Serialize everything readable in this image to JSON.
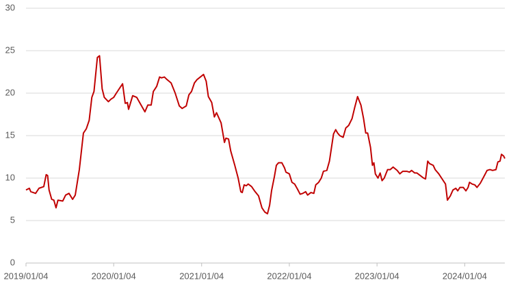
{
  "chart_data": {
    "type": "line",
    "color": "#c00000",
    "grid": true,
    "ylim": [
      0,
      30
    ],
    "yticks": [
      0,
      5,
      10,
      15,
      20,
      25,
      30
    ],
    "xlim": [
      "2019/01/04",
      "2024/06/19"
    ],
    "xticks": [
      "2019/01/04",
      "2020/01/04",
      "2021/01/04",
      "2022/01/04",
      "2023/01/04",
      "2024/01/04"
    ],
    "x": [
      "2019/01/04",
      "2019/01/18",
      "2019/01/24",
      "2019/02/13",
      "2019/02/27",
      "2019/03/19",
      "2019/03/29",
      "2019/04/04",
      "2019/04/10",
      "2019/04/21",
      "2019/04/30",
      "2019/05/09",
      "2019/05/17",
      "2019/06/06",
      "2019/06/18",
      "2019/07/02",
      "2019/07/17",
      "2019/07/28",
      "2019/08/14",
      "2019/08/31",
      "2019/09/12",
      "2019/09/24",
      "2019/10/05",
      "2019/10/14",
      "2019/10/28",
      "2019/11/06",
      "2019/11/17",
      "2019/11/26",
      "2019/12/13",
      "2019/12/24",
      "2020/01/04",
      "2020/01/15",
      "2020/01/29",
      "2020/02/10",
      "2020/02/21",
      "2020/03/01",
      "2020/03/06",
      "2020/03/23",
      "2020/04/09",
      "2020/04/29",
      "2020/05/13",
      "2020/05/25",
      "2020/06/08",
      "2020/06/17",
      "2020/07/01",
      "2020/07/13",
      "2020/07/21",
      "2020/08/02",
      "2020/08/13",
      "2020/08/30",
      "2020/09/16",
      "2020/10/03",
      "2020/10/15",
      "2020/11/01",
      "2020/11/12",
      "2020/11/23",
      "2020/12/05",
      "2020/12/16",
      "2021/01/12",
      "2021/01/23",
      "2021/02/01",
      "2021/02/15",
      "2021/02/26",
      "2021/03/07",
      "2021/03/18",
      "2021/03/26",
      "2021/04/09",
      "2021/04/15",
      "2021/04/26",
      "2021/05/05",
      "2021/05/22",
      "2021/06/05",
      "2021/06/16",
      "2021/06/22",
      "2021/06/30",
      "2021/07/09",
      "2021/07/17",
      "2021/07/31",
      "2021/08/12",
      "2021/08/29",
      "2021/09/12",
      "2021/09/24",
      "2021/10/05",
      "2021/10/14",
      "2021/10/22",
      "2021/11/03",
      "2021/11/11",
      "2021/11/20",
      "2021/12/04",
      "2021/12/15",
      "2021/12/21",
      "2022/01/04",
      "2022/01/15",
      "2022/01/26",
      "2022/02/07",
      "2022/02/18",
      "2022/03/01",
      "2022/03/13",
      "2022/03/21",
      "2022/04/04",
      "2022/04/16",
      "2022/04/24",
      "2022/05/06",
      "2022/05/17",
      "2022/05/26",
      "2022/06/09",
      "2022/06/20",
      "2022/07/07",
      "2022/07/16",
      "2022/07/24",
      "2022/08/02",
      "2022/08/16",
      "2022/08/27",
      "2022/09/08",
      "2022/09/22",
      "2022/10/03",
      "2022/10/15",
      "2022/10/29",
      "2022/11/09",
      "2022/11/18",
      "2022/11/26",
      "2022/12/08",
      "2022/12/16",
      "2022/12/22",
      "2022/12/28",
      "2023/01/08",
      "2023/01/17",
      "2023/01/25",
      "2023/02/03",
      "2023/02/17",
      "2023/02/28",
      "2023/03/12",
      "2023/03/29",
      "2023/04/09",
      "2023/04/21",
      "2023/05/08",
      "2023/05/19",
      "2023/05/28",
      "2023/06/10",
      "2023/06/19",
      "2023/07/03",
      "2023/07/17",
      "2023/07/25",
      "2023/08/03",
      "2023/08/11",
      "2023/08/26",
      "2023/09/03",
      "2023/09/18",
      "2023/10/02",
      "2023/10/16",
      "2023/10/24",
      "2023/11/05",
      "2023/11/16",
      "2023/11/28",
      "2023/12/06",
      "2023/12/15",
      "2023/12/29",
      "2024/01/09",
      "2024/01/18",
      "2024/01/24",
      "2024/02/04",
      "2024/02/15",
      "2024/02/24",
      "2024/03/09",
      "2024/03/26",
      "2024/04/06",
      "2024/04/18",
      "2024/04/29",
      "2024/05/13",
      "2024/05/21",
      "2024/05/30",
      "2024/06/05",
      "2024/06/14",
      "2024/06/19"
    ],
    "values": [
      8.6,
      8.8,
      8.4,
      8.2,
      8.8,
      9.0,
      10.4,
      10.3,
      8.6,
      7.5,
      7.4,
      6.5,
      7.4,
      7.3,
      8.0,
      8.2,
      7.5,
      8.0,
      11.0,
      15.3,
      15.8,
      16.8,
      19.5,
      20.2,
      24.2,
      24.4,
      20.5,
      19.5,
      19.0,
      19.3,
      19.5,
      20.0,
      20.6,
      21.1,
      18.8,
      18.9,
      18.1,
      19.7,
      19.5,
      18.5,
      17.8,
      18.6,
      18.6,
      20.2,
      20.8,
      21.9,
      21.8,
      21.9,
      21.6,
      21.2,
      20.0,
      18.5,
      18.2,
      18.5,
      19.8,
      20.2,
      21.2,
      21.6,
      22.2,
      21.4,
      19.6,
      18.9,
      17.2,
      17.7,
      17.0,
      16.5,
      14.2,
      14.7,
      14.6,
      13.2,
      11.5,
      10.0,
      8.4,
      8.3,
      9.2,
      9.1,
      9.3,
      9.0,
      8.5,
      7.9,
      6.5,
      6.0,
      5.8,
      6.8,
      8.5,
      10.2,
      11.5,
      11.8,
      11.8,
      11.2,
      10.7,
      10.5,
      9.5,
      9.3,
      8.7,
      8.1,
      8.2,
      8.4,
      8.0,
      8.3,
      8.2,
      9.2,
      9.5,
      10.0,
      10.8,
      10.9,
      12.0,
      15.2,
      15.7,
      15.3,
      15.0,
      14.8,
      15.9,
      16.2,
      17.0,
      18.3,
      19.6,
      18.6,
      17.0,
      15.3,
      15.3,
      13.6,
      11.5,
      11.8,
      10.5,
      10.0,
      10.6,
      9.7,
      10.0,
      11.0,
      11.0,
      11.3,
      10.9,
      10.5,
      10.8,
      10.8,
      10.7,
      10.9,
      10.6,
      10.6,
      10.3,
      10.0,
      9.9,
      12.0,
      11.7,
      11.5,
      11.0,
      10.5,
      9.9,
      9.3,
      7.4,
      7.9,
      8.6,
      8.8,
      8.5,
      8.9,
      8.9,
      8.5,
      8.9,
      9.5,
      9.3,
      9.2,
      8.9,
      9.4,
      10.3,
      10.9,
      11.0,
      10.9,
      11.0,
      11.9,
      12.0,
      12.8,
      12.6,
      12.3
    ]
  }
}
